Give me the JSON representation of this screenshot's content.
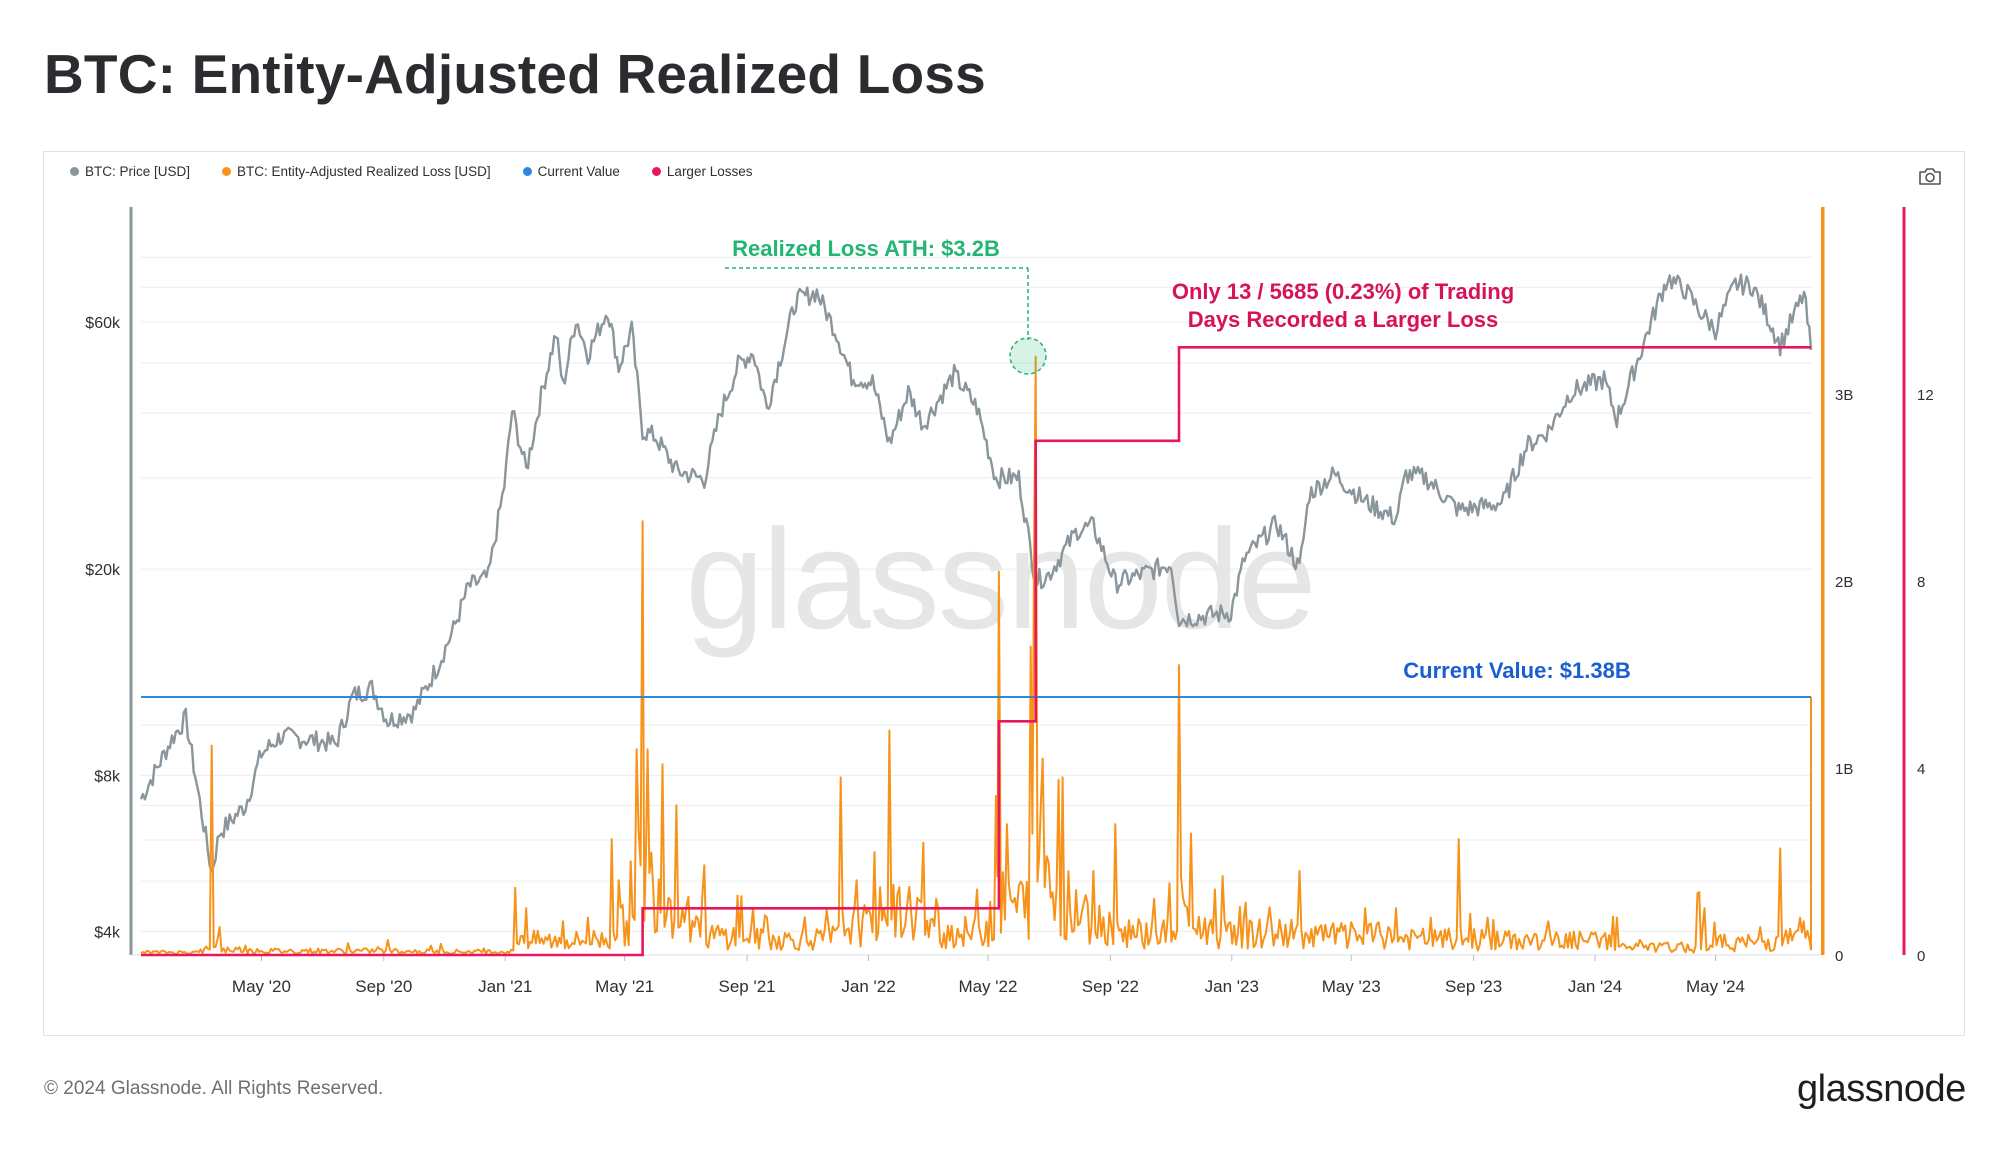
{
  "page": {
    "title": "BTC: Entity-Adjusted Realized Loss",
    "copyright": "© 2024 Glassnode. All Rights Reserved.",
    "brand": "glassnode",
    "watermark": "glassnode"
  },
  "legend": [
    {
      "label": "BTC: Price [USD]",
      "color": "#8a969c"
    },
    {
      "label": "BTC: Entity-Adjusted Realized Loss [USD]",
      "color": "#f7931a"
    },
    {
      "label": "Current Value",
      "color": "#2e86de"
    },
    {
      "label": "Larger Losses",
      "color": "#e8175d"
    }
  ],
  "icons": {
    "screenshot": "camera-icon"
  },
  "annotations": {
    "ath": "Realized Loss ATH: $3.2B",
    "larger_line1": "Only 13 / 5685 (0.23%) of Trading",
    "larger_line2": "Days Recorded a Larger Loss",
    "current": "Current Value: $1.38B"
  },
  "colors": {
    "price": "#8a969c",
    "loss": "#f7931a",
    "current": "#2e86de",
    "larger": "#e8175d",
    "ath": "#22b573",
    "larger_text": "#d8125a",
    "current_text": "#1a5fd1"
  },
  "chart_data": {
    "type": "line",
    "x_start": "2020-01-01",
    "x_end": "2024-08-06",
    "x_ticks": [
      "May '20",
      "Sep '20",
      "Jan '21",
      "May '21",
      "Sep '21",
      "Jan '22",
      "May '22",
      "Sep '22",
      "Jan '23",
      "May '23",
      "Sep '23",
      "Jan '24",
      "May '24"
    ],
    "x_tick_dates": [
      "2020-05-01",
      "2020-09-01",
      "2021-01-01",
      "2021-05-01",
      "2021-09-01",
      "2022-01-01",
      "2022-05-01",
      "2022-09-01",
      "2023-01-01",
      "2023-05-01",
      "2023-09-01",
      "2024-01-01",
      "2024-05-01"
    ],
    "axes": {
      "price": {
        "scale": "log",
        "ticks": [
          "$4k",
          "$8k",
          "$20k",
          "$60k"
        ],
        "tick_values": [
          4000,
          8000,
          20000,
          60000
        ]
      },
      "loss": {
        "ticks": [
          "0",
          "1B",
          "2B",
          "3B"
        ],
        "tick_values": [
          0,
          1,
          2,
          3
        ],
        "unit": "B USD",
        "max": 4.0
      },
      "count": {
        "ticks": [
          "0",
          "4",
          "8",
          "12"
        ],
        "tick_values": [
          0,
          4,
          8,
          12
        ],
        "max": 16
      }
    },
    "series": [
      {
        "name": "BTC: Price [USD]",
        "axis": "price",
        "points": [
          [
            "2020-01-01",
            7200
          ],
          [
            "2020-02-01",
            9400
          ],
          [
            "2020-02-15",
            10300
          ],
          [
            "2020-03-12",
            5200
          ],
          [
            "2020-03-20",
            6200
          ],
          [
            "2020-04-15",
            7000
          ],
          [
            "2020-05-01",
            8800
          ],
          [
            "2020-05-20",
            9500
          ],
          [
            "2020-06-15",
            9400
          ],
          [
            "2020-07-15",
            9200
          ],
          [
            "2020-08-01",
            11400
          ],
          [
            "2020-08-20",
            11800
          ],
          [
            "2020-09-05",
            10200
          ],
          [
            "2020-10-01",
            10600
          ],
          [
            "2020-10-25",
            13000
          ],
          [
            "2020-11-10",
            15300
          ],
          [
            "2020-11-25",
            18500
          ],
          [
            "2020-12-15",
            19300
          ],
          [
            "2020-12-31",
            29000
          ],
          [
            "2021-01-08",
            40500
          ],
          [
            "2021-01-22",
            31000
          ],
          [
            "2021-02-08",
            45000
          ],
          [
            "2021-02-21",
            57000
          ],
          [
            "2021-02-28",
            45000
          ],
          [
            "2021-03-13",
            61000
          ],
          [
            "2021-03-25",
            52000
          ],
          [
            "2021-04-14",
            63500
          ],
          [
            "2021-04-25",
            49000
          ],
          [
            "2021-05-08",
            58000
          ],
          [
            "2021-05-19",
            37000
          ],
          [
            "2021-06-01",
            36000
          ],
          [
            "2021-06-22",
            31000
          ],
          [
            "2021-07-20",
            29800
          ],
          [
            "2021-08-05",
            40000
          ],
          [
            "2021-08-23",
            49500
          ],
          [
            "2021-09-07",
            52500
          ],
          [
            "2021-09-21",
            41000
          ],
          [
            "2021-10-20",
            66000
          ],
          [
            "2021-11-10",
            68500
          ],
          [
            "2021-11-30",
            57000
          ],
          [
            "2021-12-15",
            47000
          ],
          [
            "2022-01-05",
            46000
          ],
          [
            "2022-01-22",
            35000
          ],
          [
            "2022-02-10",
            44000
          ],
          [
            "2022-02-25",
            38000
          ],
          [
            "2022-03-28",
            47500
          ],
          [
            "2022-04-20",
            41000
          ],
          [
            "2022-05-09",
            30000
          ],
          [
            "2022-06-01",
            30000
          ],
          [
            "2022-06-18",
            19000
          ],
          [
            "2022-07-01",
            19500
          ],
          [
            "2022-07-30",
            23800
          ],
          [
            "2022-08-15",
            24200
          ],
          [
            "2022-09-06",
            18800
          ],
          [
            "2022-10-01",
            19500
          ],
          [
            "2022-11-01",
            20500
          ],
          [
            "2022-11-09",
            16000
          ],
          [
            "2022-12-31",
            16500
          ],
          [
            "2023-01-14",
            21000
          ],
          [
            "2023-02-15",
            24500
          ],
          [
            "2023-03-10",
            20000
          ],
          [
            "2023-03-20",
            28000
          ],
          [
            "2023-04-14",
            30500
          ],
          [
            "2023-05-15",
            27000
          ],
          [
            "2023-06-15",
            25000
          ],
          [
            "2023-06-25",
            30500
          ],
          [
            "2023-07-15",
            30000
          ],
          [
            "2023-08-17",
            26000
          ],
          [
            "2023-09-15",
            26500
          ],
          [
            "2023-10-01",
            27000
          ],
          [
            "2023-10-24",
            34500
          ],
          [
            "2023-11-15",
            37000
          ],
          [
            "2023-12-08",
            44000
          ],
          [
            "2024-01-10",
            46500
          ],
          [
            "2024-01-23",
            39000
          ],
          [
            "2024-02-15",
            52000
          ],
          [
            "2024-03-05",
            66000
          ],
          [
            "2024-03-14",
            73000
          ],
          [
            "2024-04-01",
            69000
          ],
          [
            "2024-04-15",
            63000
          ],
          [
            "2024-05-01",
            58000
          ],
          [
            "2024-05-21",
            71000
          ],
          [
            "2024-06-07",
            70500
          ],
          [
            "2024-06-24",
            60500
          ],
          [
            "2024-07-05",
            54000
          ],
          [
            "2024-07-29",
            68000
          ],
          [
            "2024-08-05",
            53000
          ]
        ]
      },
      {
        "name": "BTC: Entity-Adjusted Realized Loss [USD]",
        "axis": "loss",
        "unit": "B USD",
        "points": [
          [
            "2020-01-01",
            0.01
          ],
          [
            "2020-03-01",
            0.03
          ],
          [
            "2020-03-12",
            1.12
          ],
          [
            "2020-03-20",
            0.15
          ],
          [
            "2020-04-15",
            0.05
          ],
          [
            "2020-06-15",
            0.03
          ],
          [
            "2020-09-05",
            0.08
          ],
          [
            "2020-11-15",
            0.02
          ],
          [
            "2021-01-11",
            0.36
          ],
          [
            "2021-01-22",
            0.25
          ],
          [
            "2021-02-28",
            0.18
          ],
          [
            "2021-03-25",
            0.2
          ],
          [
            "2021-04-18",
            0.62
          ],
          [
            "2021-04-25",
            0.4
          ],
          [
            "2021-05-13",
            1.1
          ],
          [
            "2021-05-19",
            2.32
          ],
          [
            "2021-05-24",
            1.1
          ],
          [
            "2021-06-08",
            1.02
          ],
          [
            "2021-06-22",
            0.8
          ],
          [
            "2021-07-20",
            0.48
          ],
          [
            "2021-09-07",
            0.25
          ],
          [
            "2021-09-21",
            0.2
          ],
          [
            "2021-11-20",
            0.24
          ],
          [
            "2021-12-04",
            0.95
          ],
          [
            "2021-12-20",
            0.4
          ],
          [
            "2022-01-07",
            0.55
          ],
          [
            "2022-01-22",
            1.2
          ],
          [
            "2022-02-25",
            0.6
          ],
          [
            "2022-03-10",
            0.3
          ],
          [
            "2022-04-20",
            0.35
          ],
          [
            "2022-05-09",
            0.85
          ],
          [
            "2022-05-12",
            2.05
          ],
          [
            "2022-05-20",
            0.7
          ],
          [
            "2022-06-13",
            1.65
          ],
          [
            "2022-06-18",
            3.2
          ],
          [
            "2022-06-25",
            1.05
          ],
          [
            "2022-07-15",
            0.95
          ],
          [
            "2022-08-15",
            0.45
          ],
          [
            "2022-09-06",
            0.7
          ],
          [
            "2022-10-15",
            0.3
          ],
          [
            "2022-11-09",
            1.55
          ],
          [
            "2022-11-21",
            0.65
          ],
          [
            "2022-12-15",
            0.35
          ],
          [
            "2023-01-15",
            0.28
          ],
          [
            "2023-03-10",
            0.45
          ],
          [
            "2023-05-15",
            0.25
          ],
          [
            "2023-06-15",
            0.25
          ],
          [
            "2023-07-20",
            0.2
          ],
          [
            "2023-08-17",
            0.62
          ],
          [
            "2023-09-15",
            0.2
          ],
          [
            "2023-11-15",
            0.18
          ],
          [
            "2024-01-23",
            0.2
          ],
          [
            "2024-02-15",
            0.08
          ],
          [
            "2024-04-13",
            0.33
          ],
          [
            "2024-04-20",
            0.25
          ],
          [
            "2024-06-15",
            0.15
          ],
          [
            "2024-07-05",
            0.57
          ],
          [
            "2024-07-25",
            0.2
          ],
          [
            "2024-08-05",
            1.38
          ]
        ]
      },
      {
        "name": "Current Value",
        "axis": "loss",
        "points": [
          [
            "2020-01-01",
            1.38
          ],
          [
            "2024-08-05",
            1.38
          ]
        ]
      },
      {
        "name": "Larger Losses",
        "axis": "count",
        "points": [
          [
            "2020-01-01",
            0
          ],
          [
            "2021-05-19",
            1
          ],
          [
            "2022-05-12",
            5
          ],
          [
            "2022-06-18",
            11
          ],
          [
            "2022-11-09",
            13
          ],
          [
            "2024-08-05",
            13
          ]
        ]
      }
    ],
    "annotated_points": [
      {
        "label": "Realized Loss ATH: $3.2B",
        "date": "2022-06-18",
        "value": 3.2
      }
    ],
    "grid": true,
    "legend_position": "top-left"
  }
}
